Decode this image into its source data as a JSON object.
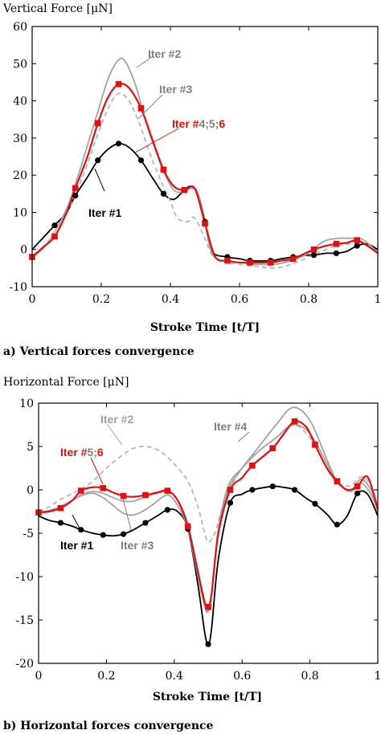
{
  "colors": {
    "black": "#000000",
    "red": "#e01010",
    "gray": "#a3a3a3",
    "dashed": "#b8b8b8"
  },
  "chart_data": [
    {
      "type": "line",
      "title": "Vertical Force [μN]",
      "xlabel": "Stroke Time [t/T]",
      "caption": "a) Vertical forces convergence",
      "xlim": [
        0,
        1
      ],
      "ylim": [
        -10,
        60
      ],
      "x_ticks": [
        0,
        0.2,
        0.4,
        0.6,
        0.8,
        1
      ],
      "x_tick_labels": [
        "0",
        "0.2",
        "0.4",
        "0.6",
        "0.8",
        "1"
      ],
      "y_ticks": [
        -10,
        0,
        10,
        20,
        30,
        40,
        50,
        60
      ],
      "y_tick_labels": [
        "-10",
        "0",
        "10",
        "20",
        "30",
        "40",
        "50",
        "60"
      ],
      "grid": false,
      "annotations": [
        {
          "text": "Iter #2",
          "color": "#808080"
        },
        {
          "text": "Iter #3",
          "color": "#808080"
        },
        {
          "text_parts": [
            "Iter #",
            "4;5;",
            "6"
          ],
          "color": "#e01010"
        },
        {
          "text": "Iter #1",
          "color": "#000000"
        }
      ],
      "series": [
        {
          "name": "Iter #1",
          "color": "#000000",
          "style": "solid",
          "marker": "circle",
          "markers": [
            0.065,
            0.125,
            0.19,
            0.25,
            0.315,
            0.38,
            0.44,
            0.5,
            0.565,
            0.63,
            0.69,
            0.755,
            0.815,
            0.88,
            0.94
          ],
          "x": [
            0,
            0.03,
            0.065,
            0.1,
            0.125,
            0.16,
            0.19,
            0.22,
            0.25,
            0.28,
            0.315,
            0.35,
            0.38,
            0.41,
            0.44,
            0.46,
            0.48,
            0.5,
            0.52,
            0.565,
            0.6,
            0.63,
            0.69,
            0.72,
            0.755,
            0.8,
            0.815,
            0.85,
            0.88,
            0.91,
            0.94,
            0.97,
            1
          ],
          "y": [
            0,
            3,
            6.5,
            10,
            14.5,
            19.5,
            24,
            27,
            28.5,
            27.5,
            24,
            19,
            15,
            13.5,
            16,
            17,
            15,
            7.5,
            -0.5,
            -2,
            -2.5,
            -3,
            -3,
            -2.5,
            -2,
            -1.5,
            -1.5,
            -1,
            -1,
            -0.5,
            1,
            1.5,
            0
          ]
        },
        {
          "name": "Iter #2",
          "color": "#a3a3a3",
          "style": "solid",
          "x": [
            0,
            0.03,
            0.06,
            0.1,
            0.13,
            0.16,
            0.19,
            0.22,
            0.25,
            0.27,
            0.3,
            0.33,
            0.36,
            0.38,
            0.41,
            0.44,
            0.46,
            0.48,
            0.5,
            0.52,
            0.55,
            0.6,
            0.65,
            0.7,
            0.75,
            0.8,
            0.84,
            0.88,
            0.92,
            0.95,
            0.98,
            1
          ],
          "y": [
            -2,
            0,
            4,
            11,
            19,
            28,
            37,
            46,
            51,
            50.5,
            44,
            34,
            26,
            21,
            16,
            15.5,
            16.5,
            15,
            7,
            -1,
            -3,
            -3.5,
            -4,
            -4,
            -3,
            -1,
            2,
            3,
            3,
            3,
            1,
            -1
          ]
        },
        {
          "name": "Iter #3",
          "color": "#b8b8b8",
          "style": "dashed",
          "x": [
            0,
            0.03,
            0.06,
            0.1,
            0.13,
            0.16,
            0.19,
            0.22,
            0.25,
            0.28,
            0.31,
            0.34,
            0.37,
            0.4,
            0.42,
            0.45,
            0.47,
            0.5,
            0.52,
            0.55,
            0.6,
            0.65,
            0.7,
            0.75,
            0.8,
            0.85,
            0.88,
            0.92,
            0.95,
            0.98,
            1
          ],
          "y": [
            -2,
            0,
            4,
            10,
            16,
            23,
            31,
            38,
            42,
            40,
            34,
            26,
            19,
            13,
            8.5,
            7.5,
            8.5,
            3,
            -1.5,
            -3,
            -4,
            -4.5,
            -5,
            -4,
            -2,
            0,
            1,
            1.5,
            2,
            0.5,
            -1
          ]
        },
        {
          "name": "Iter #4;5;6",
          "color": "#e01010",
          "style": "solid",
          "marker": "square",
          "markers": [
            0,
            0.065,
            0.125,
            0.19,
            0.25,
            0.315,
            0.38,
            0.44,
            0.5,
            0.565,
            0.63,
            0.69,
            0.755,
            0.815,
            0.88,
            0.94
          ],
          "x": [
            0,
            0.03,
            0.065,
            0.1,
            0.125,
            0.16,
            0.19,
            0.22,
            0.25,
            0.28,
            0.315,
            0.35,
            0.38,
            0.41,
            0.44,
            0.47,
            0.5,
            0.53,
            0.565,
            0.6,
            0.63,
            0.69,
            0.72,
            0.755,
            0.79,
            0.815,
            0.85,
            0.88,
            0.91,
            0.94,
            0.97,
            1
          ],
          "y": [
            -2,
            0.5,
            3.5,
            10,
            16.5,
            25,
            34,
            41,
            44.5,
            43.5,
            38,
            29,
            21.5,
            17,
            16,
            16.5,
            7,
            -2,
            -3,
            -3.5,
            -3.5,
            -3.5,
            -3,
            -2.5,
            -1,
            0,
            1,
            1.5,
            1.8,
            2.5,
            1,
            -1
          ]
        }
      ]
    },
    {
      "type": "line",
      "title": "Horizontal Force [μN]",
      "xlabel": "Stroke Time [t/T]",
      "caption": "b) Horizontal forces convergence",
      "xlim": [
        0,
        1
      ],
      "ylim": [
        -20,
        10
      ],
      "x_ticks": [
        0,
        0.2,
        0.4,
        0.6,
        0.8,
        1
      ],
      "x_tick_labels": [
        "0",
        "0.2",
        "0.4",
        "0.6",
        "0.8",
        "1"
      ],
      "y_ticks": [
        -20,
        -15,
        -10,
        -5,
        0,
        5,
        10
      ],
      "y_tick_labels": [
        "-20",
        "-15",
        "-10",
        "-5",
        "0",
        "5",
        "10"
      ],
      "grid": false,
      "annotations": [
        {
          "text": "Iter #2",
          "color": "#a3a3a3"
        },
        {
          "text": "Iter #4",
          "color": "#808080"
        },
        {
          "text_parts": [
            "Iter #",
            "5;",
            "6"
          ],
          "color": "#e01010"
        },
        {
          "text": "Iter #1",
          "color": "#000000"
        },
        {
          "text": "Iter #3",
          "color": "#808080"
        }
      ],
      "series": [
        {
          "name": "Iter #1",
          "color": "#000000",
          "style": "solid",
          "marker": "circle",
          "markers": [
            0.065,
            0.125,
            0.19,
            0.25,
            0.315,
            0.38,
            0.44,
            0.5,
            0.565,
            0.63,
            0.69,
            0.755,
            0.815,
            0.88,
            0.94
          ],
          "x": [
            0,
            0.03,
            0.065,
            0.1,
            0.125,
            0.16,
            0.19,
            0.22,
            0.25,
            0.28,
            0.315,
            0.35,
            0.38,
            0.41,
            0.44,
            0.47,
            0.49,
            0.5,
            0.51,
            0.53,
            0.565,
            0.6,
            0.63,
            0.69,
            0.72,
            0.755,
            0.79,
            0.815,
            0.85,
            0.88,
            0.91,
            0.94,
            0.97,
            1
          ],
          "y": [
            -3,
            -3.5,
            -3.8,
            -4.2,
            -4.6,
            -5,
            -5.2,
            -5.3,
            -5.1,
            -4.6,
            -3.8,
            -3,
            -2.3,
            -2.5,
            -4.5,
            -11,
            -16.5,
            -17.8,
            -16,
            -8,
            -1.5,
            -0.5,
            0,
            0.4,
            0.3,
            0,
            -1,
            -1.6,
            -2.8,
            -4,
            -3,
            -0.4,
            -0.5,
            -3
          ]
        },
        {
          "name": "Iter #2",
          "color": "#b8b8b8",
          "style": "dashed",
          "x": [
            0,
            0.03,
            0.06,
            0.1,
            0.13,
            0.16,
            0.2,
            0.24,
            0.28,
            0.32,
            0.36,
            0.4,
            0.44,
            0.47,
            0.49,
            0.5,
            0.52,
            0.55,
            0.6,
            0.65,
            0.7,
            0.75,
            0.8,
            0.85,
            0.88,
            0.92,
            0.95,
            0.98,
            1
          ],
          "y": [
            -2.5,
            -2,
            -1.2,
            -0.4,
            0.2,
            1,
            2.5,
            3.8,
            4.8,
            5,
            4.4,
            3,
            1,
            -2,
            -5,
            -6,
            -5,
            -1,
            2.5,
            4.5,
            6,
            7.5,
            6,
            2.5,
            0.8,
            0.5,
            1.5,
            0.5,
            -2
          ]
        },
        {
          "name": "Iter #3",
          "color": "#a3a3a3",
          "style": "solid",
          "x": [
            0,
            0.03,
            0.06,
            0.1,
            0.13,
            0.16,
            0.19,
            0.22,
            0.25,
            0.28,
            0.31,
            0.34,
            0.38,
            0.41,
            0.44,
            0.47,
            0.49,
            0.5,
            0.51,
            0.53,
            0.56,
            0.6,
            0.65,
            0.7,
            0.75,
            0.8,
            0.85,
            0.88,
            0.92,
            0.95,
            0.98,
            1
          ],
          "y": [
            -2.6,
            -2.4,
            -2,
            -1.2,
            -0.6,
            -0.4,
            -0.9,
            -1.8,
            -2.7,
            -2.9,
            -2.4,
            -1.6,
            -0.6,
            -1.8,
            -4.5,
            -10,
            -13.5,
            -14,
            -12,
            -5,
            0,
            2.5,
            5,
            7.5,
            9.5,
            8,
            3.5,
            1,
            -0.2,
            0.8,
            -0.5,
            -2.5
          ]
        },
        {
          "name": "Iter #4",
          "color": "#a3a3a3",
          "style": "solid",
          "x": [
            0,
            0.03,
            0.06,
            0.1,
            0.13,
            0.16,
            0.19,
            0.22,
            0.25,
            0.28,
            0.31,
            0.34,
            0.38,
            0.41,
            0.44,
            0.47,
            0.49,
            0.5,
            0.51,
            0.53,
            0.56,
            0.6,
            0.65,
            0.7,
            0.75,
            0.8,
            0.85,
            0.88,
            0.92,
            0.95,
            0.98,
            1
          ],
          "y": [
            -2.6,
            -2.4,
            -2,
            -1.2,
            -0.5,
            -0.2,
            -0.4,
            -0.9,
            -1.3,
            -1.3,
            -0.9,
            -0.5,
            -0.2,
            -1.2,
            -4,
            -9.5,
            -13.2,
            -13.8,
            -12,
            -4.5,
            0.5,
            2.5,
            4.5,
            6,
            7.5,
            6.5,
            3,
            0.8,
            0,
            1.2,
            0,
            -2.5
          ]
        },
        {
          "name": "Iter #5;6",
          "color": "#e01010",
          "style": "solid",
          "marker": "square",
          "markers": [
            0,
            0.065,
            0.125,
            0.19,
            0.25,
            0.315,
            0.38,
            0.44,
            0.5,
            0.565,
            0.63,
            0.69,
            0.755,
            0.815,
            0.88,
            0.94
          ],
          "x": [
            0,
            0.03,
            0.065,
            0.1,
            0.125,
            0.16,
            0.19,
            0.22,
            0.25,
            0.28,
            0.315,
            0.35,
            0.38,
            0.41,
            0.44,
            0.47,
            0.49,
            0.5,
            0.51,
            0.53,
            0.565,
            0.6,
            0.63,
            0.69,
            0.72,
            0.755,
            0.79,
            0.815,
            0.85,
            0.88,
            0.91,
            0.94,
            0.97,
            1
          ],
          "y": [
            -2.6,
            -2.5,
            -2.1,
            -1.2,
            -0.1,
            0.3,
            0.2,
            -0.3,
            -0.7,
            -0.8,
            -0.6,
            -0.3,
            -0.1,
            -1.2,
            -4.2,
            -9.5,
            -13,
            -13.5,
            -12,
            -5,
            0,
            1.4,
            2.8,
            4.8,
            6.3,
            7.9,
            7.2,
            5.2,
            2.5,
            1,
            0,
            0.4,
            1.5,
            -2.2
          ]
        }
      ]
    }
  ]
}
